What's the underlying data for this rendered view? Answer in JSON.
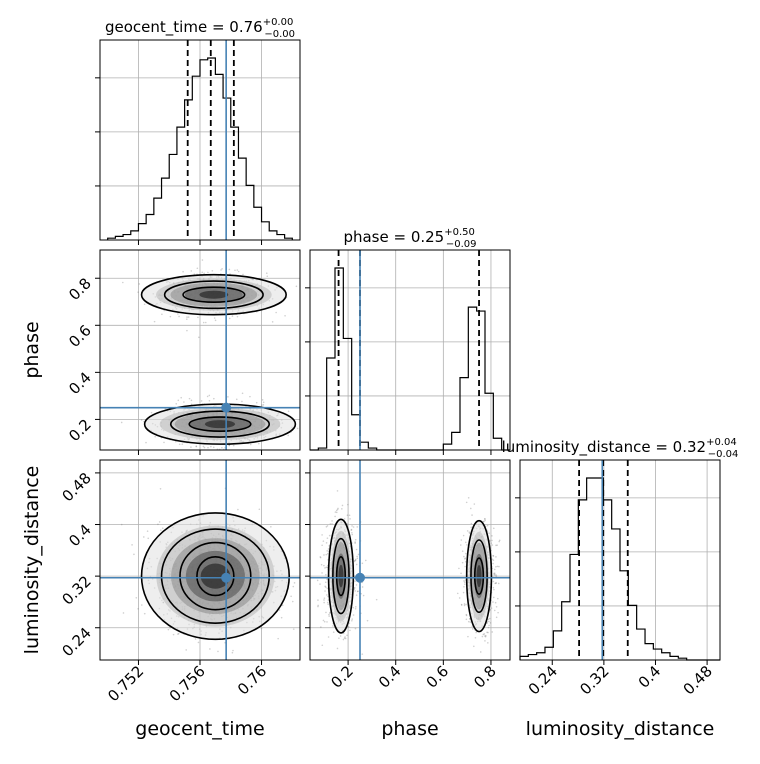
{
  "colors": {
    "truth": "#4682b4",
    "hist": "#000000",
    "grid": "#b0b0b0",
    "points": "#777777"
  },
  "chart_data": [
    {
      "type": "histogram",
      "panel": "geocent_time marginal",
      "title_prefix": "geocent_time = 0.76",
      "title_sup": "+0.00",
      "title_sub": "−0.00",
      "xlim": [
        0.7495,
        0.7625
      ],
      "bin_edges": [
        0.75,
        0.7505,
        0.751,
        0.7515,
        0.752,
        0.7525,
        0.753,
        0.7535,
        0.754,
        0.7545,
        0.755,
        0.7555,
        0.756,
        0.7565,
        0.757,
        0.7575,
        0.758,
        0.7585,
        0.759,
        0.7595,
        0.76,
        0.7605,
        0.761,
        0.7615,
        0.762
      ],
      "counts": [
        0.01,
        0.02,
        0.03,
        0.05,
        0.09,
        0.14,
        0.23,
        0.34,
        0.47,
        0.62,
        0.77,
        0.9,
        0.99,
        1.0,
        0.91,
        0.78,
        0.62,
        0.45,
        0.3,
        0.18,
        0.1,
        0.05,
        0.03,
        0.01
      ],
      "quantiles": [
        0.7552,
        0.7567,
        0.7582
      ],
      "truth": 0.7577,
      "ticks": [
        0.752,
        0.756,
        0.76
      ]
    },
    {
      "type": "histogram",
      "panel": "phase marginal",
      "title_prefix": "phase = 0.25",
      "title_sup": "+0.50",
      "title_sub": "−0.09",
      "xlim": [
        0.04,
        0.88
      ],
      "bin_edges": [
        0.04,
        0.075,
        0.11,
        0.145,
        0.18,
        0.215,
        0.25,
        0.285,
        0.32,
        0.355,
        0.39,
        0.425,
        0.46,
        0.495,
        0.53,
        0.565,
        0.6,
        0.635,
        0.67,
        0.705,
        0.74,
        0.775,
        0.81,
        0.845,
        0.88
      ],
      "counts": [
        0.0,
        0.01,
        0.47,
        0.93,
        0.57,
        0.18,
        0.04,
        0.01,
        0.0,
        0.0,
        0.0,
        0.0,
        0.0,
        0.0,
        0.0,
        0.0,
        0.03,
        0.09,
        0.37,
        0.73,
        0.71,
        0.29,
        0.06,
        0.0
      ],
      "quantiles": [
        0.16,
        0.25,
        0.75
      ],
      "truth": 0.25,
      "ticks": [
        0.2,
        0.4,
        0.6,
        0.8
      ]
    },
    {
      "type": "histogram",
      "panel": "luminosity_distance marginal",
      "title_prefix": "luminosity_distance = 0.32",
      "title_sup": "+0.04",
      "title_sub": "−0.04",
      "xlim": [
        0.19,
        0.5
      ],
      "bin_edges": [
        0.19,
        0.2029,
        0.2158,
        0.2287,
        0.2417,
        0.2546,
        0.2675,
        0.2804,
        0.2933,
        0.3062,
        0.3192,
        0.3321,
        0.345,
        0.3579,
        0.3708,
        0.3838,
        0.3967,
        0.4096,
        0.4225,
        0.4354,
        0.4483,
        0.4612,
        0.4742,
        0.4871,
        0.5
      ],
      "counts": [
        0.02,
        0.03,
        0.04,
        0.07,
        0.16,
        0.32,
        0.58,
        0.88,
        1.0,
        1.0,
        0.88,
        0.72,
        0.49,
        0.3,
        0.17,
        0.09,
        0.06,
        0.04,
        0.02,
        0.01,
        0.0,
        0.0,
        0.0,
        0.0
      ],
      "quantiles": [
        0.2816,
        0.319,
        0.357
      ],
      "truth": 0.3175,
      "ticks": [
        0.24,
        0.32,
        0.4,
        0.48
      ]
    },
    {
      "type": "scatter",
      "panel": "phase vs geocent_time",
      "xlim": [
        0.7495,
        0.7625
      ],
      "ylim": [
        0.07,
        0.92
      ],
      "truth": [
        0.7577,
        0.25
      ],
      "modes": [
        {
          "cx": 0.7569,
          "cy": 0.73,
          "sx": 0.0017,
          "sy": 0.045,
          "weight": 0.45
        },
        {
          "cx": 0.7573,
          "cy": 0.18,
          "sx": 0.0017,
          "sy": 0.045,
          "weight": 0.55
        }
      ],
      "contour_levels": [
        {
          "mode": 0,
          "rx": 0.002,
          "ry": 0.032
        },
        {
          "mode": 0,
          "rx": 0.0032,
          "ry": 0.058
        },
        {
          "mode": 0,
          "rx": 0.0047,
          "ry": 0.085
        },
        {
          "mode": 1,
          "rx": 0.002,
          "ry": 0.03
        },
        {
          "mode": 1,
          "rx": 0.0032,
          "ry": 0.055
        },
        {
          "mode": 1,
          "rx": 0.0049,
          "ry": 0.085
        }
      ],
      "xticks": [
        0.752,
        0.756,
        0.76
      ],
      "yticks": [
        0.2,
        0.4,
        0.6,
        0.8
      ]
    },
    {
      "type": "scatter",
      "panel": "luminosity_distance vs geocent_time",
      "xlim": [
        0.7495,
        0.7625
      ],
      "ylim": [
        0.19,
        0.5
      ],
      "truth": [
        0.7577,
        0.3175
      ],
      "modes": [
        {
          "cx": 0.757,
          "cy": 0.32,
          "sx": 0.0018,
          "sy": 0.038,
          "weight": 1.0
        }
      ],
      "contour_levels": [
        {
          "mode": 0,
          "rx": 0.0012,
          "ry": 0.03
        },
        {
          "mode": 0,
          "rx": 0.0023,
          "ry": 0.052
        },
        {
          "mode": 0,
          "rx": 0.0035,
          "ry": 0.073
        },
        {
          "mode": 0,
          "rx": 0.0048,
          "ry": 0.098
        }
      ],
      "xticks": [
        0.752,
        0.756,
        0.76
      ],
      "yticks": [
        0.24,
        0.32,
        0.4,
        0.48
      ]
    },
    {
      "type": "scatter",
      "panel": "luminosity_distance vs phase",
      "xlim": [
        0.04,
        0.88
      ],
      "ylim": [
        0.19,
        0.5
      ],
      "truth": [
        0.25,
        0.3175
      ],
      "modes": [
        {
          "cx": 0.17,
          "cy": 0.32,
          "sx": 0.035,
          "sy": 0.04,
          "weight": 0.55
        },
        {
          "cx": 0.75,
          "cy": 0.32,
          "sx": 0.035,
          "sy": 0.04,
          "weight": 0.45
        }
      ],
      "contour_levels": [
        {
          "mode": 0,
          "rx": 0.018,
          "ry": 0.03
        },
        {
          "mode": 0,
          "rx": 0.034,
          "ry": 0.058
        },
        {
          "mode": 0,
          "rx": 0.052,
          "ry": 0.088
        },
        {
          "mode": 1,
          "rx": 0.018,
          "ry": 0.028
        },
        {
          "mode": 1,
          "rx": 0.034,
          "ry": 0.056
        },
        {
          "mode": 1,
          "rx": 0.052,
          "ry": 0.086
        }
      ],
      "xticks": [
        0.2,
        0.4,
        0.6,
        0.8
      ],
      "yticks": [
        0.24,
        0.32,
        0.4,
        0.48
      ]
    }
  ],
  "labels": {
    "x_geocent_time": "geocent_time",
    "x_phase": "phase",
    "x_luminosity_distance": "luminosity_distance",
    "y_phase": "phase",
    "y_luminosity_distance": "luminosity_distance"
  }
}
